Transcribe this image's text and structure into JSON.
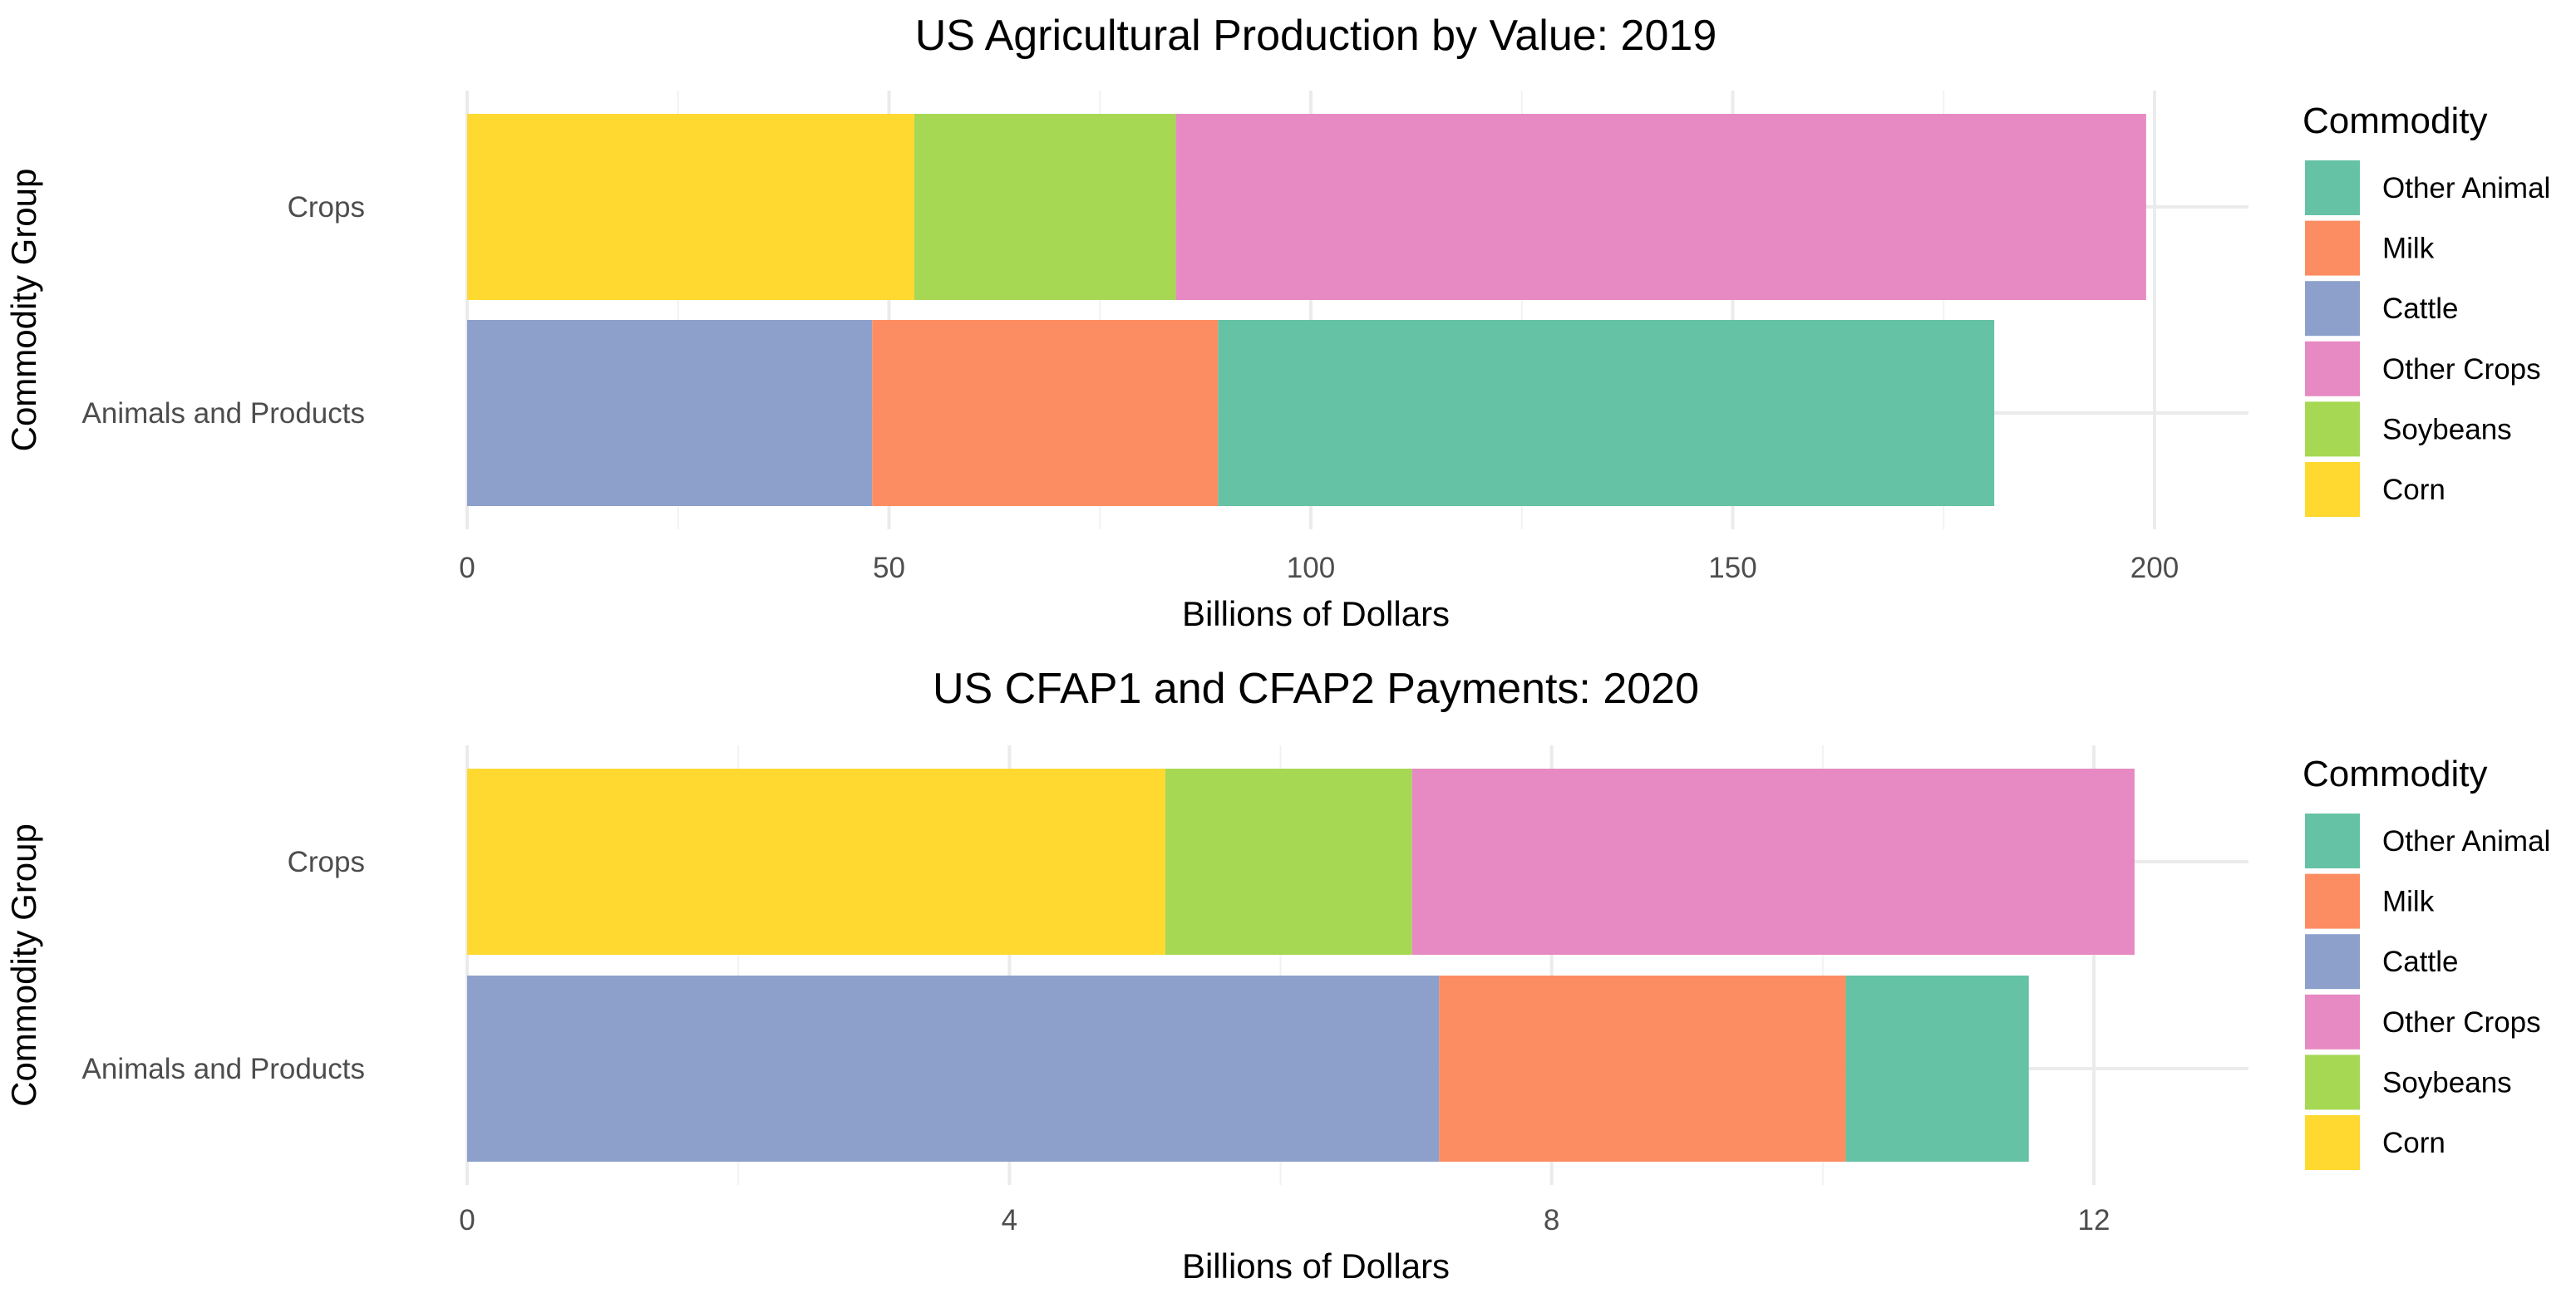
{
  "chart_data": [
    {
      "type": "bar",
      "orientation": "horizontal",
      "stacked": true,
      "title": "US Agricultural Production by Value: 2019",
      "xlabel": "Billions of Dollars",
      "ylabel": "Commodity Group",
      "categories": [
        "Crops",
        "Animals and Products"
      ],
      "xlim": [
        0,
        210
      ],
      "xticks": [
        0,
        50,
        100,
        150,
        200
      ],
      "xtick_labels": [
        "0",
        "50",
        "100",
        "150",
        "200"
      ],
      "stacks": [
        {
          "category": "Crops",
          "segments": [
            {
              "name": "Corn",
              "value": 53
            },
            {
              "name": "Soybeans",
              "value": 31
            },
            {
              "name": "Other Crops",
              "value": 115
            }
          ]
        },
        {
          "category": "Animals and Products",
          "segments": [
            {
              "name": "Cattle",
              "value": 48
            },
            {
              "name": "Milk",
              "value": 41
            },
            {
              "name": "Other Animal",
              "value": 92
            }
          ]
        }
      ],
      "legend": {
        "title": "Commodity",
        "position": "right",
        "items": [
          {
            "name": "Other Animal",
            "color": "#66C2A5"
          },
          {
            "name": "Milk",
            "color": "#FC8D62"
          },
          {
            "name": "Cattle",
            "color": "#8DA0CB"
          },
          {
            "name": "Other Crops",
            "color": "#E78AC3"
          },
          {
            "name": "Soybeans",
            "color": "#A6D854"
          },
          {
            "name": "Corn",
            "color": "#FFD92F"
          }
        ]
      }
    },
    {
      "type": "bar",
      "orientation": "horizontal",
      "stacked": true,
      "title": "US CFAP1 and CFAP2 Payments: 2020",
      "xlabel": "Billions of Dollars",
      "ylabel": "Commodity Group",
      "categories": [
        "Crops",
        "Animals and Products"
      ],
      "xlim": [
        0,
        13.15
      ],
      "xticks": [
        0,
        4,
        8,
        12
      ],
      "xtick_labels": [
        "0",
        "4",
        "8",
        "12"
      ],
      "stacks": [
        {
          "category": "Crops",
          "segments": [
            {
              "name": "Corn",
              "value": 5.15
            },
            {
              "name": "Soybeans",
              "value": 1.82
            },
            {
              "name": "Other Crops",
              "value": 5.33
            }
          ]
        },
        {
          "category": "Animals and Products",
          "segments": [
            {
              "name": "Cattle",
              "value": 7.17
            },
            {
              "name": "Milk",
              "value": 3.0
            },
            {
              "name": "Other Animal",
              "value": 1.35
            }
          ]
        }
      ],
      "legend": {
        "title": "Commodity",
        "position": "right",
        "items": [
          {
            "name": "Other Animal",
            "color": "#66C2A5"
          },
          {
            "name": "Milk",
            "color": "#FC8D62"
          },
          {
            "name": "Cattle",
            "color": "#8DA0CB"
          },
          {
            "name": "Other Crops",
            "color": "#E78AC3"
          },
          {
            "name": "Soybeans",
            "color": "#A6D854"
          },
          {
            "name": "Corn",
            "color": "#FFD92F"
          }
        ]
      }
    }
  ]
}
